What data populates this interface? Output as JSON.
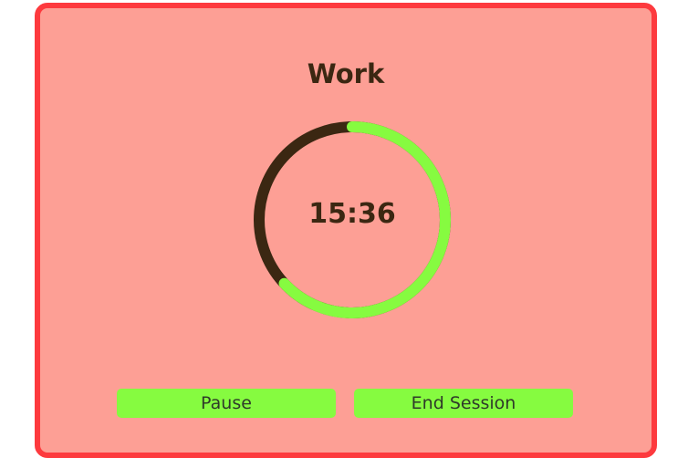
{
  "session": {
    "title": "Work",
    "time_remaining": "15:36",
    "progress_elapsed_fraction": 0.37
  },
  "buttons": {
    "pause_label": "Pause",
    "end_label": "End Session"
  },
  "colors": {
    "frame": "#fd3a3e",
    "background": "#fd9f95",
    "ring_remaining": "#86fb40",
    "ring_elapsed": "#3b2712",
    "button": "#86fb40",
    "text": "#3b2712"
  }
}
